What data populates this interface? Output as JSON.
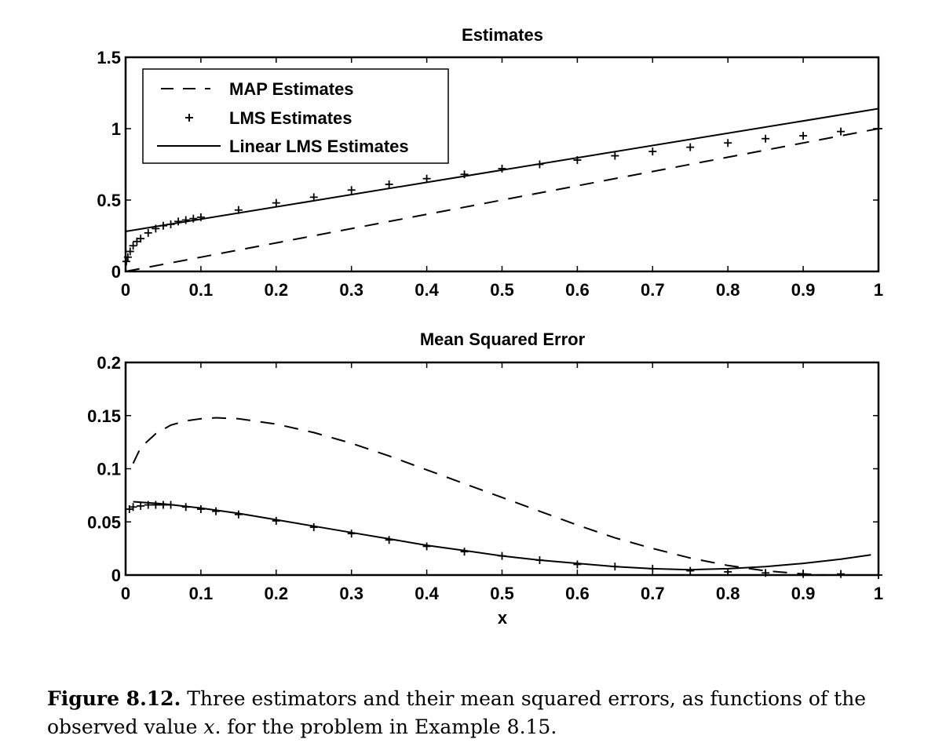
{
  "chart_data": [
    {
      "type": "line",
      "title": "Estimates",
      "xlabel": "",
      "ylabel": "",
      "xlim": [
        0,
        1
      ],
      "ylim": [
        0,
        1.5
      ],
      "xticks": [
        "0",
        "0.1",
        "0.2",
        "0.3",
        "0.4",
        "0.5",
        "0.6",
        "0.7",
        "0.8",
        "0.9",
        "1"
      ],
      "yticks": [
        "0",
        "0.5",
        "1",
        "1.5"
      ],
      "legend_position": "top-left",
      "series": [
        {
          "name": "MAP Estimates",
          "style": "dashed",
          "x": [
            0,
            0.1,
            0.2,
            0.3,
            0.4,
            0.5,
            0.6,
            0.7,
            0.8,
            0.9,
            1.0
          ],
          "y": [
            0,
            0.1,
            0.2,
            0.3,
            0.4,
            0.5,
            0.6,
            0.7,
            0.8,
            0.9,
            1.0
          ]
        },
        {
          "name": "LMS Estimates",
          "style": "plus-markers",
          "x": [
            0.001,
            0.003,
            0.006,
            0.01,
            0.015,
            0.02,
            0.03,
            0.04,
            0.05,
            0.06,
            0.07,
            0.08,
            0.09,
            0.1,
            0.15,
            0.2,
            0.25,
            0.3,
            0.35,
            0.4,
            0.45,
            0.5,
            0.55,
            0.6,
            0.65,
            0.7,
            0.75,
            0.8,
            0.85,
            0.9,
            0.95,
            1.0
          ],
          "y": [
            0.07,
            0.1,
            0.14,
            0.18,
            0.21,
            0.23,
            0.27,
            0.3,
            0.32,
            0.33,
            0.35,
            0.36,
            0.37,
            0.38,
            0.43,
            0.48,
            0.52,
            0.57,
            0.61,
            0.65,
            0.68,
            0.72,
            0.75,
            0.78,
            0.81,
            0.84,
            0.87,
            0.9,
            0.93,
            0.95,
            0.98,
            1.0
          ]
        },
        {
          "name": "Linear LMS Estimates",
          "style": "solid",
          "x": [
            0,
            1
          ],
          "y": [
            0.28,
            1.14
          ]
        }
      ]
    },
    {
      "type": "line",
      "title": "Mean Squared Error",
      "xlabel": "x",
      "ylabel": "",
      "xlim": [
        0,
        1
      ],
      "ylim": [
        0,
        0.2
      ],
      "xticks": [
        "0",
        "0.1",
        "0.2",
        "0.3",
        "0.4",
        "0.5",
        "0.6",
        "0.7",
        "0.8",
        "0.9",
        "1"
      ],
      "yticks": [
        "0",
        "0.05",
        "0.1",
        "0.15",
        "0.2"
      ],
      "series": [
        {
          "style": "dashed",
          "x": [
            0.01,
            0.02,
            0.04,
            0.06,
            0.08,
            0.1,
            0.12,
            0.15,
            0.2,
            0.25,
            0.3,
            0.35,
            0.4,
            0.45,
            0.5,
            0.55,
            0.6,
            0.65,
            0.7,
            0.75,
            0.8,
            0.85,
            0.9,
            0.93
          ],
          "y": [
            0.105,
            0.12,
            0.133,
            0.141,
            0.145,
            0.147,
            0.148,
            0.147,
            0.142,
            0.134,
            0.124,
            0.112,
            0.099,
            0.086,
            0.073,
            0.06,
            0.047,
            0.035,
            0.025,
            0.016,
            0.009,
            0.004,
            0.001,
            0
          ]
        },
        {
          "style": "plus-markers",
          "x": [
            0.005,
            0.01,
            0.02,
            0.03,
            0.04,
            0.05,
            0.06,
            0.08,
            0.1,
            0.12,
            0.15,
            0.2,
            0.25,
            0.3,
            0.35,
            0.4,
            0.45,
            0.5,
            0.55,
            0.6,
            0.65,
            0.7,
            0.75,
            0.8,
            0.85,
            0.9,
            0.95,
            1.0
          ],
          "y": [
            0.062,
            0.064,
            0.065,
            0.066,
            0.066,
            0.066,
            0.066,
            0.064,
            0.062,
            0.06,
            0.057,
            0.051,
            0.045,
            0.039,
            0.033,
            0.027,
            0.022,
            0.018,
            0.014,
            0.01,
            0.008,
            0.006,
            0.004,
            0.003,
            0.002,
            0.001,
            0.001,
            0
          ]
        },
        {
          "style": "solid",
          "x": [
            0.01,
            0.05,
            0.1,
            0.15,
            0.2,
            0.25,
            0.3,
            0.35,
            0.4,
            0.45,
            0.5,
            0.55,
            0.6,
            0.65,
            0.7,
            0.75,
            0.8,
            0.85,
            0.9,
            0.95,
            0.99
          ],
          "y": [
            0.069,
            0.067,
            0.063,
            0.058,
            0.052,
            0.046,
            0.04,
            0.034,
            0.028,
            0.023,
            0.018,
            0.014,
            0.011,
            0.008,
            0.006,
            0.005,
            0.006,
            0.008,
            0.011,
            0.015,
            0.019
          ]
        }
      ]
    }
  ],
  "caption": {
    "label": "Figure 8.12.",
    "text_before": " Three estimators and their mean squared errors, as functions of the observed value ",
    "var": "x",
    "text_after": ". for the problem in Example 8.15."
  }
}
